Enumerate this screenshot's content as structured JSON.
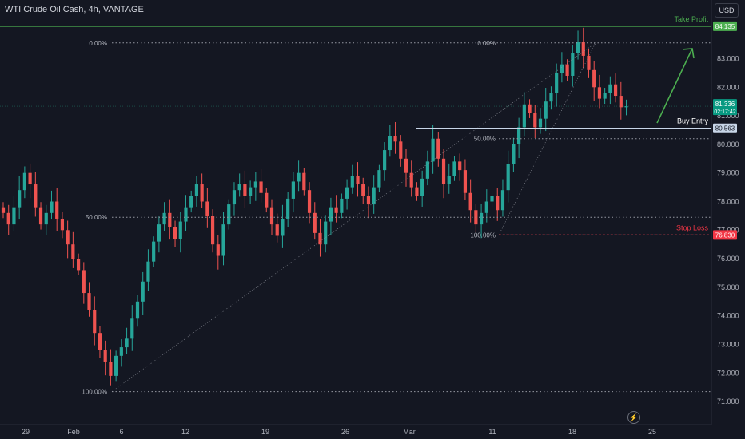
{
  "header": {
    "symbol_title": "WTI Crude Oil Cash, 4h, VANTAGE",
    "currency_button": "USD",
    "replay_icon": "lightning-bolt-icon"
  },
  "colors": {
    "background": "#141722",
    "up_candle": "#26a69a",
    "down_candle": "#ef5350",
    "take_profit": "#4caf50",
    "stop_loss": "#f23645",
    "buy_entry": "#c8d6e8",
    "fib_dots": "#9598a1",
    "axis_text": "#b2b5be",
    "current_price_bg": "#089981"
  },
  "chart_data": {
    "type": "candlestick",
    "title": "WTI Crude Oil Cash, 4h, VANTAGE",
    "timeframe": "4h",
    "y_axis": {
      "ticks": [
        71,
        72,
        73,
        74,
        75,
        76,
        77,
        78,
        79,
        80,
        81,
        82,
        83
      ],
      "tick_labels": [
        "71.000",
        "72.000",
        "73.000",
        "74.000",
        "75.000",
        "76.000",
        "77.000",
        "78.000",
        "79.000",
        "80.000",
        "81.000",
        "82.000",
        "83.000"
      ],
      "range": [
        70.7,
        84.5
      ]
    },
    "x_axis": {
      "tick_labels": [
        "29",
        "Feb",
        "6",
        "12",
        "19",
        "26",
        "Mar",
        "11",
        "18",
        "25"
      ],
      "tick_dates": [
        "2024-01-29",
        "2024-02-01",
        "2024-02-06",
        "2024-02-12",
        "2024-02-19",
        "2024-02-26",
        "2024-03-01",
        "2024-03-11",
        "2024-03-18",
        "2024-03-25"
      ]
    },
    "price_path_close": [
      77.6,
      77.2,
      77.8,
      78.4,
      79.0,
      78.6,
      77.8,
      77.2,
      77.6,
      78.0,
      77.4,
      77.0,
      76.5,
      76.0,
      75.6,
      74.8,
      74.2,
      73.4,
      72.8,
      72.4,
      71.9,
      72.6,
      72.9,
      73.2,
      73.9,
      74.5,
      75.2,
      75.9,
      76.6,
      77.2,
      77.6,
      77.1,
      76.7,
      77.3,
      77.8,
      78.2,
      78.6,
      78.0,
      77.5,
      76.5,
      76.1,
      77.2,
      77.9,
      78.4,
      78.6,
      78.2,
      78.5,
      78.7,
      78.3,
      77.8,
      77.2,
      76.8,
      77.4,
      78.1,
      78.7,
      79.0,
      78.4,
      77.6,
      76.9,
      76.5,
      77.3,
      77.8,
      77.6,
      78.1,
      78.5,
      78.9,
      78.6,
      78.2,
      77.9,
      78.5,
      79.1,
      79.8,
      80.3,
      80.1,
      79.5,
      79.0,
      78.5,
      78.2,
      78.8,
      79.4,
      80.2,
      79.5,
      78.6,
      78.9,
      79.4,
      79.1,
      78.3,
      77.7,
      77.2,
      77.6,
      78.0,
      78.2,
      77.7,
      78.4,
      79.3,
      80.0,
      80.6,
      81.4,
      81.1,
      80.6,
      80.9,
      81.5,
      81.8,
      82.5,
      82.8,
      82.4,
      83.2,
      83.6,
      83.1,
      82.6,
      82.0,
      81.6,
      81.8,
      82.1,
      81.7,
      81.3,
      81.336
    ],
    "current_price": "81.336",
    "countdown": "02:17:42",
    "levels": [
      {
        "label": "Take Profit",
        "value": 84.135,
        "tag": "84.135"
      },
      {
        "label": "Buy Entry",
        "value": 80.563,
        "tag": "80.563"
      },
      {
        "label": "Stop Loss",
        "value": 76.83,
        "tag": "76.830"
      }
    ],
    "fibonacci": [
      {
        "name": "fib-retracement-major",
        "levels": [
          {
            "label": "0.00%",
            "value": 83.55
          },
          {
            "label": "50.00%",
            "value": 77.45
          },
          {
            "label": "100.00%",
            "value": 71.35
          }
        ]
      },
      {
        "name": "fib-retracement-minor",
        "levels": [
          {
            "label": "0.00%",
            "value": 83.55
          },
          {
            "label": "50.00%",
            "value": 80.2
          },
          {
            "label": "100.00%",
            "value": 76.83
          }
        ]
      }
    ],
    "projection_arrow": {
      "from_value": 80.75,
      "to_value": 83.35
    }
  }
}
